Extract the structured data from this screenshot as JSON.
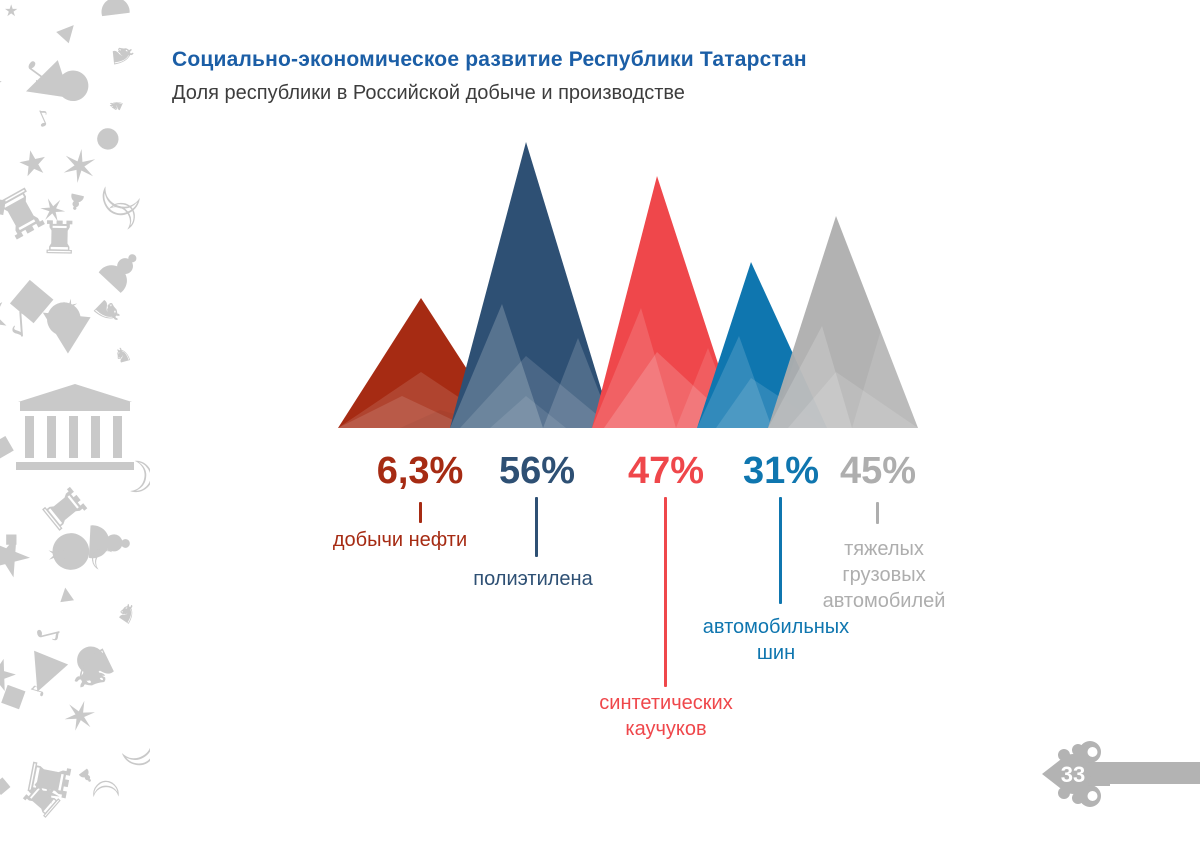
{
  "header": {
    "title": "Социально-экономическое развитие Республики Татарстан",
    "subtitle": "Доля республики в Российской добыче и производстве"
  },
  "chart_data": {
    "type": "bar",
    "style": "triangle-mountain-infographic",
    "title": "Доля республики в Российской добыче и производстве",
    "unit": "%",
    "legend": "none",
    "axes": "none",
    "categories": [
      "добычи нефти",
      "полиэтилена",
      "синтетических каучуков",
      "автомобильных шин",
      "тяжелых грузовых автомобилей"
    ],
    "values": [
      6.3,
      56,
      47,
      31,
      45
    ],
    "series": [
      {
        "label": "добычи нефти",
        "value": 6.3,
        "value_label": "6,3%",
        "color": "#a62b13"
      },
      {
        "label": "полиэтилена",
        "value": 56,
        "value_label": "56%",
        "color": "#2e5074"
      },
      {
        "label": "синтетических каучуков",
        "value": 47,
        "value_label": "47%",
        "color": "#ef474b"
      },
      {
        "label": "автомобильных шин",
        "value": 31,
        "value_label": "31%",
        "color": "#0f76af"
      },
      {
        "label": "тяжелых грузовых автомобилей",
        "value": 45,
        "value_label": "45%",
        "color": "#aeaeae"
      }
    ]
  },
  "footer": {
    "page_number": "33"
  },
  "colors": {
    "title": "#1b5ea6",
    "subtitle": "#3d3d3d",
    "footer_bar": "#b3b3b3",
    "sidebar_pattern": "#c9c9c9"
  },
  "sidebar": {
    "description": "decorative gray silhouette collage",
    "glyphs": [
      "★",
      "✶",
      "♞",
      "♜",
      "●",
      "◆",
      "▲",
      "☽",
      "♪",
      "♟"
    ]
  }
}
